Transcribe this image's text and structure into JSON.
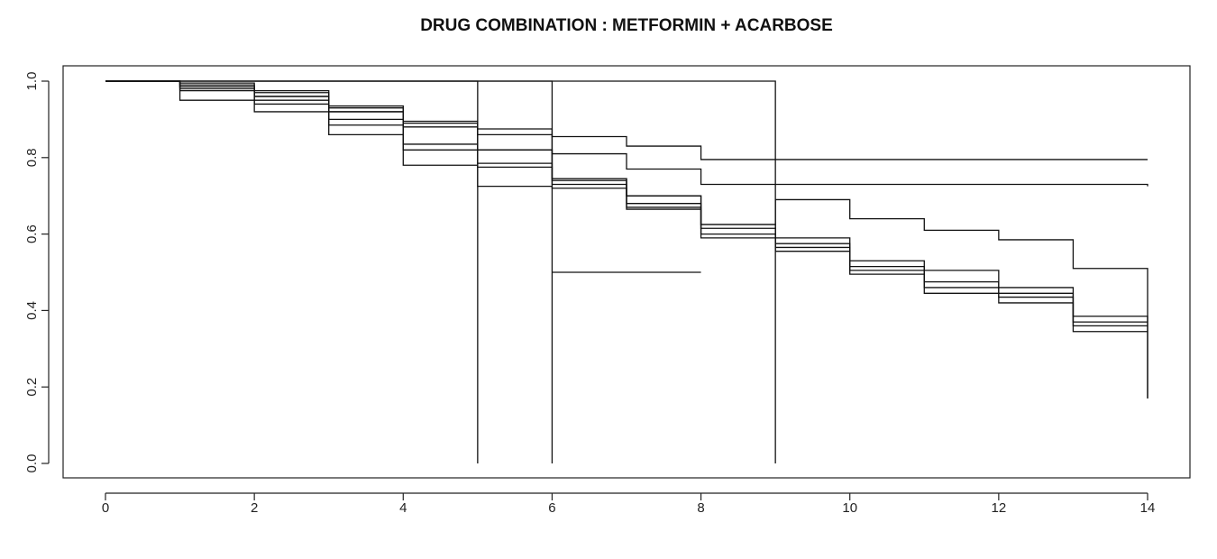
{
  "chart_data": {
    "type": "line",
    "title": "DRUG COMBINATION : METFORMIN + ACARBOSE",
    "xlabel": "",
    "ylabel": "",
    "xlim": [
      0,
      14
    ],
    "ylim": [
      0.0,
      1.0
    ],
    "x_ticks": [
      0,
      2,
      4,
      6,
      8,
      10,
      12,
      14
    ],
    "y_ticks": [
      0.0,
      0.2,
      0.4,
      0.6,
      0.8,
      1.0
    ],
    "x_tick_labels": [
      "0",
      "2",
      "4",
      "6",
      "8",
      "10",
      "12",
      "14"
    ],
    "y_tick_labels": [
      "0.0",
      "0.2",
      "0.4",
      "0.6",
      "0.8",
      "1.0"
    ],
    "grid": false,
    "legend": "none",
    "series": [
      {
        "x": [
          0,
          5,
          5
        ],
        "y": [
          1.0,
          1.0,
          0.0
        ]
      },
      {
        "x": [
          0,
          6,
          6
        ],
        "y": [
          1.0,
          1.0,
          0.0
        ]
      },
      {
        "x": [
          6,
          8
        ],
        "y": [
          0.5,
          0.5
        ]
      },
      {
        "x": [
          0,
          9,
          9
        ],
        "y": [
          1.0,
          1.0,
          0.0
        ]
      },
      {
        "x": [
          0,
          1,
          2,
          3,
          4,
          5,
          6,
          7,
          8,
          14
        ],
        "y": [
          1.0,
          0.995,
          0.975,
          0.935,
          0.895,
          0.875,
          0.855,
          0.83,
          0.795,
          0.795
        ]
      },
      {
        "x": [
          0,
          1,
          2,
          3,
          4,
          5,
          6,
          7,
          8,
          14
        ],
        "y": [
          1.0,
          0.99,
          0.97,
          0.93,
          0.89,
          0.86,
          0.81,
          0.77,
          0.73,
          0.725
        ]
      },
      {
        "x": [
          0,
          1,
          2,
          3,
          4,
          5,
          6,
          7,
          8,
          9,
          10,
          11,
          12,
          13,
          14,
          14
        ],
        "y": [
          1.0,
          0.985,
          0.96,
          0.92,
          0.88,
          0.82,
          0.745,
          0.7,
          0.625,
          0.59,
          0.53,
          0.505,
          0.46,
          0.385,
          0.385,
          0.17
        ]
      },
      {
        "x": [
          0,
          1,
          2,
          3,
          4,
          5,
          6,
          7,
          8,
          9,
          10,
          11,
          12,
          13,
          14
        ],
        "y": [
          1.0,
          0.98,
          0.95,
          0.9,
          0.835,
          0.785,
          0.74,
          0.68,
          0.615,
          0.575,
          0.515,
          0.475,
          0.445,
          0.37,
          0.37
        ]
      },
      {
        "x": [
          0,
          1,
          2,
          3,
          4,
          5,
          6,
          7,
          8,
          9,
          10,
          11,
          12,
          13,
          14
        ],
        "y": [
          1.0,
          0.975,
          0.94,
          0.885,
          0.82,
          0.775,
          0.73,
          0.67,
          0.6,
          0.565,
          0.505,
          0.46,
          0.435,
          0.36,
          0.36
        ]
      },
      {
        "x": [
          0,
          1,
          2,
          3,
          4,
          5,
          6,
          7,
          8,
          9,
          10,
          11,
          12,
          13,
          14
        ],
        "y": [
          1.0,
          0.95,
          0.92,
          0.86,
          0.78,
          0.725,
          0.72,
          0.665,
          0.59,
          0.555,
          0.495,
          0.445,
          0.42,
          0.345,
          0.345
        ]
      },
      {
        "x": [
          0,
          1,
          2,
          3,
          4,
          5,
          6,
          7,
          8,
          9,
          10,
          11,
          12,
          13,
          14,
          14
        ],
        "y": [
          1.0,
          0.985,
          0.96,
          0.92,
          0.88,
          0.82,
          0.745,
          0.7,
          0.625,
          0.69,
          0.64,
          0.61,
          0.585,
          0.51,
          0.51,
          0.17
        ]
      }
    ]
  }
}
